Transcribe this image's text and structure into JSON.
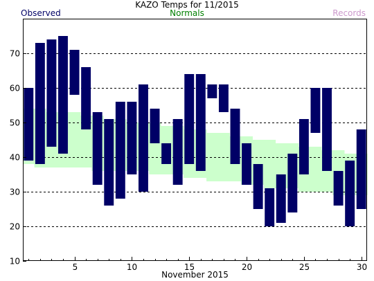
{
  "chart_data": {
    "type": "bar",
    "title": "KAZO Temps for 11/2015",
    "xlabel": "November 2015",
    "ylabel": "",
    "xlim": [
      0.5,
      30.5
    ],
    "ylim": [
      10,
      80
    ],
    "yticks": [
      10,
      20,
      30,
      40,
      50,
      60,
      70
    ],
    "xticks": [
      5,
      10,
      15,
      20,
      25,
      30
    ],
    "grid": true,
    "legend": {
      "observed": "Observed",
      "normals": "Normals",
      "records": "Records",
      "placement": "top"
    },
    "colors": {
      "observed": "#000066",
      "normals": "#ccffcc",
      "normals_label": "#008000",
      "records_label": "#cc99cc",
      "grid": "#000000"
    },
    "days": [
      1,
      2,
      3,
      4,
      5,
      6,
      7,
      8,
      9,
      10,
      11,
      12,
      13,
      14,
      15,
      16,
      17,
      18,
      19,
      20,
      21,
      22,
      23,
      24,
      25,
      26,
      27,
      28,
      29,
      30
    ],
    "observed_high": [
      60,
      73,
      74,
      75,
      71,
      66,
      53,
      51,
      56,
      56,
      61,
      54,
      44,
      51,
      64,
      64,
      61,
      61,
      54,
      44,
      38,
      31,
      35,
      41,
      51,
      60,
      60,
      36,
      39,
      48
    ],
    "observed_low": [
      39,
      38,
      43,
      41,
      58,
      48,
      32,
      26,
      28,
      35,
      30,
      44,
      38,
      32,
      38,
      36,
      57,
      53,
      38,
      32,
      25,
      20,
      21,
      24,
      35,
      47,
      36,
      26,
      20,
      25
    ],
    "normal_high": [
      54,
      54,
      53,
      53,
      53,
      52,
      52,
      51,
      51,
      50,
      50,
      50,
      49,
      49,
      48,
      48,
      47,
      47,
      46,
      46,
      45,
      45,
      44,
      44,
      43,
      43,
      42,
      42,
      41,
      41
    ],
    "normal_low": [
      38,
      37,
      37,
      37,
      37,
      37,
      36,
      36,
      36,
      36,
      36,
      35,
      35,
      35,
      34,
      34,
      33,
      33,
      33,
      32,
      32,
      31,
      31,
      31,
      30,
      30,
      30,
      29,
      29,
      29
    ]
  }
}
